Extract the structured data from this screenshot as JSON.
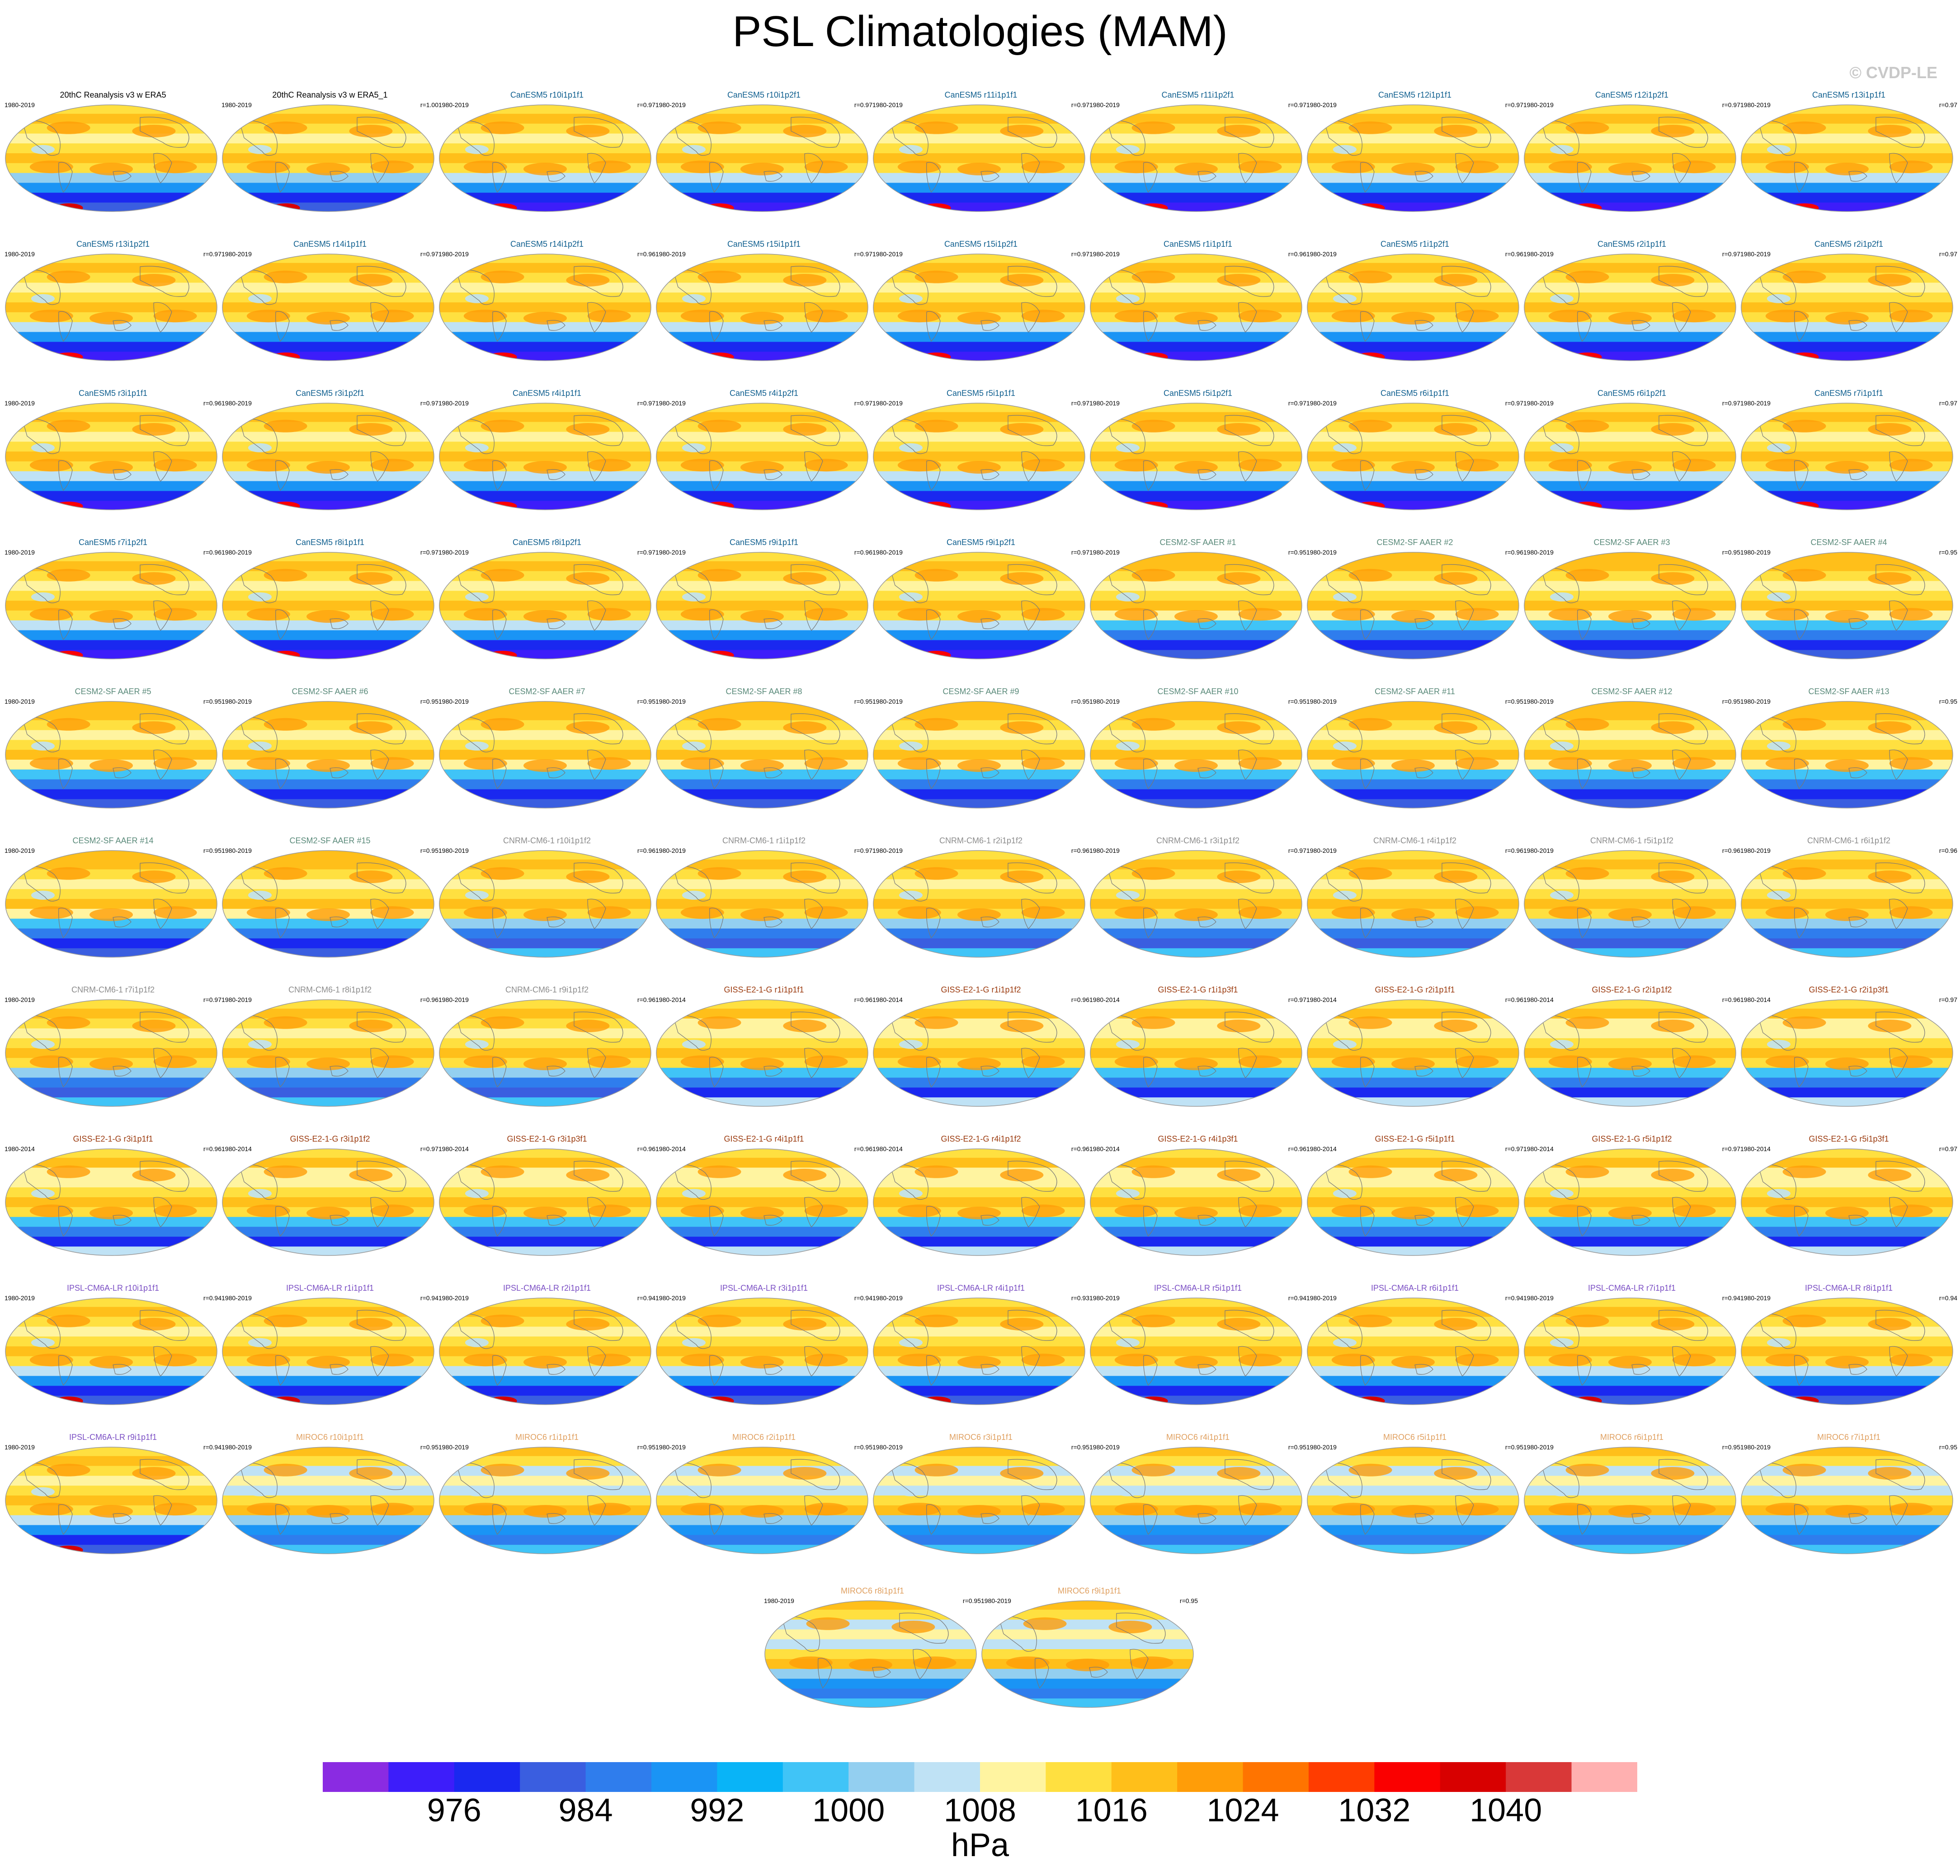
{
  "figure_title": "PSL Climatologies (MAM)",
  "credit": "© CVDP-LE",
  "colors": {
    "observations": "#000000",
    "CanESM5": "#0f5f8f",
    "CESM2-SF AAER": "#5a8a7a",
    "CNRM-CM6-1": "#8c8c8c",
    "GISS-E2-1-G": "#9b3a0e",
    "IPSL-CM6A-LR": "#7b4fc4",
    "MIROC6": "#e0a060"
  },
  "panels": [
    {
      "title": "20thC Reanalysis v3 w ERA5",
      "years": "1980-2019",
      "r": "",
      "group": "observations",
      "style": "obs"
    },
    {
      "title": "20thC Reanalysis v3 w ERA5_1",
      "years": "1980-2019",
      "r": "r=1.00",
      "group": "observations",
      "style": "obs"
    },
    {
      "title": "CanESM5 r10i1p1f1",
      "years": "1980-2019",
      "r": "r=0.97",
      "group": "CanESM5",
      "style": "canesm"
    },
    {
      "title": "CanESM5 r10i1p2f1",
      "years": "1980-2019",
      "r": "r=0.97",
      "group": "CanESM5",
      "style": "canesm"
    },
    {
      "title": "CanESM5 r11i1p1f1",
      "years": "1980-2019",
      "r": "r=0.97",
      "group": "CanESM5",
      "style": "canesm"
    },
    {
      "title": "CanESM5 r11i1p2f1",
      "years": "1980-2019",
      "r": "r=0.97",
      "group": "CanESM5",
      "style": "canesm"
    },
    {
      "title": "CanESM5 r12i1p1f1",
      "years": "1980-2019",
      "r": "r=0.97",
      "group": "CanESM5",
      "style": "canesm"
    },
    {
      "title": "CanESM5 r12i1p2f1",
      "years": "1980-2019",
      "r": "r=0.97",
      "group": "CanESM5",
      "style": "canesm"
    },
    {
      "title": "CanESM5 r13i1p1f1",
      "years": "1980-2019",
      "r": "r=0.97",
      "group": "CanESM5",
      "style": "canesm"
    },
    {
      "title": "CanESM5 r13i1p2f1",
      "years": "1980-2019",
      "r": "r=0.97",
      "group": "CanESM5",
      "style": "canesm"
    },
    {
      "title": "CanESM5 r14i1p1f1",
      "years": "1980-2019",
      "r": "r=0.97",
      "group": "CanESM5",
      "style": "canesm"
    },
    {
      "title": "CanESM5 r14i1p2f1",
      "years": "1980-2019",
      "r": "r=0.96",
      "group": "CanESM5",
      "style": "canesm"
    },
    {
      "title": "CanESM5 r15i1p1f1",
      "years": "1980-2019",
      "r": "r=0.97",
      "group": "CanESM5",
      "style": "canesm"
    },
    {
      "title": "CanESM5 r15i1p2f1",
      "years": "1980-2019",
      "r": "r=0.97",
      "group": "CanESM5",
      "style": "canesm"
    },
    {
      "title": "CanESM5 r1i1p1f1",
      "years": "1980-2019",
      "r": "r=0.96",
      "group": "CanESM5",
      "style": "canesm"
    },
    {
      "title": "CanESM5 r1i1p2f1",
      "years": "1980-2019",
      "r": "r=0.96",
      "group": "CanESM5",
      "style": "canesm"
    },
    {
      "title": "CanESM5 r2i1p1f1",
      "years": "1980-2019",
      "r": "r=0.97",
      "group": "CanESM5",
      "style": "canesm"
    },
    {
      "title": "CanESM5 r2i1p2f1",
      "years": "1980-2019",
      "r": "r=0.97",
      "group": "CanESM5",
      "style": "canesm"
    },
    {
      "title": "CanESM5 r3i1p1f1",
      "years": "1980-2019",
      "r": "r=0.96",
      "group": "CanESM5",
      "style": "canesm"
    },
    {
      "title": "CanESM5 r3i1p2f1",
      "years": "1980-2019",
      "r": "r=0.97",
      "group": "CanESM5",
      "style": "canesm"
    },
    {
      "title": "CanESM5 r4i1p1f1",
      "years": "1980-2019",
      "r": "r=0.97",
      "group": "CanESM5",
      "style": "canesm"
    },
    {
      "title": "CanESM5 r4i1p2f1",
      "years": "1980-2019",
      "r": "r=0.97",
      "group": "CanESM5",
      "style": "canesm"
    },
    {
      "title": "CanESM5 r5i1p1f1",
      "years": "1980-2019",
      "r": "r=0.97",
      "group": "CanESM5",
      "style": "canesm"
    },
    {
      "title": "CanESM5 r5i1p2f1",
      "years": "1980-2019",
      "r": "r=0.97",
      "group": "CanESM5",
      "style": "canesm"
    },
    {
      "title": "CanESM5 r6i1p1f1",
      "years": "1980-2019",
      "r": "r=0.97",
      "group": "CanESM5",
      "style": "canesm"
    },
    {
      "title": "CanESM5 r6i1p2f1",
      "years": "1980-2019",
      "r": "r=0.97",
      "group": "CanESM5",
      "style": "canesm"
    },
    {
      "title": "CanESM5 r7i1p1f1",
      "years": "1980-2019",
      "r": "r=0.97",
      "group": "CanESM5",
      "style": "canesm"
    },
    {
      "title": "CanESM5 r7i1p2f1",
      "years": "1980-2019",
      "r": "r=0.96",
      "group": "CanESM5",
      "style": "canesm"
    },
    {
      "title": "CanESM5 r8i1p1f1",
      "years": "1980-2019",
      "r": "r=0.97",
      "group": "CanESM5",
      "style": "canesm"
    },
    {
      "title": "CanESM5 r8i1p2f1",
      "years": "1980-2019",
      "r": "r=0.97",
      "group": "CanESM5",
      "style": "canesm"
    },
    {
      "title": "CanESM5 r9i1p1f1",
      "years": "1980-2019",
      "r": "r=0.96",
      "group": "CanESM5",
      "style": "canesm"
    },
    {
      "title": "CanESM5 r9i1p2f1",
      "years": "1980-2019",
      "r": "r=0.97",
      "group": "CanESM5",
      "style": "canesm"
    },
    {
      "title": "CESM2-SF AAER #1",
      "years": "1980-2019",
      "r": "r=0.95",
      "group": "CESM2-SF AAER",
      "style": "cesm"
    },
    {
      "title": "CESM2-SF AAER #2",
      "years": "1980-2019",
      "r": "r=0.96",
      "group": "CESM2-SF AAER",
      "style": "cesm"
    },
    {
      "title": "CESM2-SF AAER #3",
      "years": "1980-2019",
      "r": "r=0.95",
      "group": "CESM2-SF AAER",
      "style": "cesm"
    },
    {
      "title": "CESM2-SF AAER #4",
      "years": "1980-2019",
      "r": "r=0.95",
      "group": "CESM2-SF AAER",
      "style": "cesm"
    },
    {
      "title": "CESM2-SF AAER #5",
      "years": "1980-2019",
      "r": "r=0.95",
      "group": "CESM2-SF AAER",
      "style": "cesm"
    },
    {
      "title": "CESM2-SF AAER #6",
      "years": "1980-2019",
      "r": "r=0.95",
      "group": "CESM2-SF AAER",
      "style": "cesm"
    },
    {
      "title": "CESM2-SF AAER #7",
      "years": "1980-2019",
      "r": "r=0.95",
      "group": "CESM2-SF AAER",
      "style": "cesm"
    },
    {
      "title": "CESM2-SF AAER #8",
      "years": "1980-2019",
      "r": "r=0.95",
      "group": "CESM2-SF AAER",
      "style": "cesm"
    },
    {
      "title": "CESM2-SF AAER #9",
      "years": "1980-2019",
      "r": "r=0.95",
      "group": "CESM2-SF AAER",
      "style": "cesm"
    },
    {
      "title": "CESM2-SF AAER #10",
      "years": "1980-2019",
      "r": "r=0.95",
      "group": "CESM2-SF AAER",
      "style": "cesm"
    },
    {
      "title": "CESM2-SF AAER #11",
      "years": "1980-2019",
      "r": "r=0.95",
      "group": "CESM2-SF AAER",
      "style": "cesm"
    },
    {
      "title": "CESM2-SF AAER #12",
      "years": "1980-2019",
      "r": "r=0.95",
      "group": "CESM2-SF AAER",
      "style": "cesm"
    },
    {
      "title": "CESM2-SF AAER #13",
      "years": "1980-2019",
      "r": "r=0.95",
      "group": "CESM2-SF AAER",
      "style": "cesm"
    },
    {
      "title": "CESM2-SF AAER #14",
      "years": "1980-2019",
      "r": "r=0.95",
      "group": "CESM2-SF AAER",
      "style": "cesm"
    },
    {
      "title": "CESM2-SF AAER #15",
      "years": "1980-2019",
      "r": "r=0.95",
      "group": "CESM2-SF AAER",
      "style": "cesm"
    },
    {
      "title": "CNRM-CM6-1 r10i1p1f2",
      "years": "1980-2019",
      "r": "r=0.96",
      "group": "CNRM-CM6-1",
      "style": "cnrm"
    },
    {
      "title": "CNRM-CM6-1 r1i1p1f2",
      "years": "1980-2019",
      "r": "r=0.97",
      "group": "CNRM-CM6-1",
      "style": "cnrm"
    },
    {
      "title": "CNRM-CM6-1 r2i1p1f2",
      "years": "1980-2019",
      "r": "r=0.96",
      "group": "CNRM-CM6-1",
      "style": "cnrm"
    },
    {
      "title": "CNRM-CM6-1 r3i1p1f2",
      "years": "1980-2019",
      "r": "r=0.97",
      "group": "CNRM-CM6-1",
      "style": "cnrm"
    },
    {
      "title": "CNRM-CM6-1 r4i1p1f2",
      "years": "1980-2019",
      "r": "r=0.96",
      "group": "CNRM-CM6-1",
      "style": "cnrm"
    },
    {
      "title": "CNRM-CM6-1 r5i1p1f2",
      "years": "1980-2019",
      "r": "r=0.96",
      "group": "CNRM-CM6-1",
      "style": "cnrm"
    },
    {
      "title": "CNRM-CM6-1 r6i1p1f2",
      "years": "1980-2019",
      "r": "r=0.96",
      "group": "CNRM-CM6-1",
      "style": "cnrm"
    },
    {
      "title": "CNRM-CM6-1 r7i1p1f2",
      "years": "1980-2019",
      "r": "r=0.97",
      "group": "CNRM-CM6-1",
      "style": "cnrm"
    },
    {
      "title": "CNRM-CM6-1 r8i1p1f2",
      "years": "1980-2019",
      "r": "r=0.96",
      "group": "CNRM-CM6-1",
      "style": "cnrm"
    },
    {
      "title": "CNRM-CM6-1 r9i1p1f2",
      "years": "1980-2019",
      "r": "r=0.96",
      "group": "CNRM-CM6-1",
      "style": "cnrm"
    },
    {
      "title": "GISS-E2-1-G r1i1p1f1",
      "years": "1980-2014",
      "r": "r=0.96",
      "group": "GISS-E2-1-G",
      "style": "giss"
    },
    {
      "title": "GISS-E2-1-G r1i1p1f2",
      "years": "1980-2014",
      "r": "r=0.96",
      "group": "GISS-E2-1-G",
      "style": "giss"
    },
    {
      "title": "GISS-E2-1-G r1i1p3f1",
      "years": "1980-2014",
      "r": "r=0.97",
      "group": "GISS-E2-1-G",
      "style": "giss"
    },
    {
      "title": "GISS-E2-1-G r2i1p1f1",
      "years": "1980-2014",
      "r": "r=0.96",
      "group": "GISS-E2-1-G",
      "style": "giss"
    },
    {
      "title": "GISS-E2-1-G r2i1p1f2",
      "years": "1980-2014",
      "r": "r=0.96",
      "group": "GISS-E2-1-G",
      "style": "giss"
    },
    {
      "title": "GISS-E2-1-G r2i1p3f1",
      "years": "1980-2014",
      "r": "r=0.97",
      "group": "GISS-E2-1-G",
      "style": "giss"
    },
    {
      "title": "GISS-E2-1-G r3i1p1f1",
      "years": "1980-2014",
      "r": "r=0.96",
      "group": "GISS-E2-1-G",
      "style": "giss"
    },
    {
      "title": "GISS-E2-1-G r3i1p1f2",
      "years": "1980-2014",
      "r": "r=0.97",
      "group": "GISS-E2-1-G",
      "style": "giss"
    },
    {
      "title": "GISS-E2-1-G r3i1p3f1",
      "years": "1980-2014",
      "r": "r=0.96",
      "group": "GISS-E2-1-G",
      "style": "giss"
    },
    {
      "title": "GISS-E2-1-G r4i1p1f1",
      "years": "1980-2014",
      "r": "r=0.96",
      "group": "GISS-E2-1-G",
      "style": "giss"
    },
    {
      "title": "GISS-E2-1-G r4i1p1f2",
      "years": "1980-2014",
      "r": "r=0.96",
      "group": "GISS-E2-1-G",
      "style": "giss"
    },
    {
      "title": "GISS-E2-1-G r4i1p3f1",
      "years": "1980-2014",
      "r": "r=0.96",
      "group": "GISS-E2-1-G",
      "style": "giss"
    },
    {
      "title": "GISS-E2-1-G r5i1p1f1",
      "years": "1980-2014",
      "r": "r=0.97",
      "group": "GISS-E2-1-G",
      "style": "giss"
    },
    {
      "title": "GISS-E2-1-G r5i1p1f2",
      "years": "1980-2014",
      "r": "r=0.97",
      "group": "GISS-E2-1-G",
      "style": "giss"
    },
    {
      "title": "GISS-E2-1-G r5i1p3f1",
      "years": "1980-2014",
      "r": "r=0.97",
      "group": "GISS-E2-1-G",
      "style": "giss"
    },
    {
      "title": "IPSL-CM6A-LR r10i1p1f1",
      "years": "1980-2019",
      "r": "r=0.94",
      "group": "IPSL-CM6A-LR",
      "style": "ipsl"
    },
    {
      "title": "IPSL-CM6A-LR r1i1p1f1",
      "years": "1980-2019",
      "r": "r=0.94",
      "group": "IPSL-CM6A-LR",
      "style": "ipsl"
    },
    {
      "title": "IPSL-CM6A-LR r2i1p1f1",
      "years": "1980-2019",
      "r": "r=0.94",
      "group": "IPSL-CM6A-LR",
      "style": "ipsl"
    },
    {
      "title": "IPSL-CM6A-LR r3i1p1f1",
      "years": "1980-2019",
      "r": "r=0.94",
      "group": "IPSL-CM6A-LR",
      "style": "ipsl"
    },
    {
      "title": "IPSL-CM6A-LR r4i1p1f1",
      "years": "1980-2019",
      "r": "r=0.93",
      "group": "IPSL-CM6A-LR",
      "style": "ipsl"
    },
    {
      "title": "IPSL-CM6A-LR r5i1p1f1",
      "years": "1980-2019",
      "r": "r=0.94",
      "group": "IPSL-CM6A-LR",
      "style": "ipsl"
    },
    {
      "title": "IPSL-CM6A-LR r6i1p1f1",
      "years": "1980-2019",
      "r": "r=0.94",
      "group": "IPSL-CM6A-LR",
      "style": "ipsl"
    },
    {
      "title": "IPSL-CM6A-LR r7i1p1f1",
      "years": "1980-2019",
      "r": "r=0.94",
      "group": "IPSL-CM6A-LR",
      "style": "ipsl"
    },
    {
      "title": "IPSL-CM6A-LR r8i1p1f1",
      "years": "1980-2019",
      "r": "r=0.94",
      "group": "IPSL-CM6A-LR",
      "style": "ipsl"
    },
    {
      "title": "IPSL-CM6A-LR r9i1p1f1",
      "years": "1980-2019",
      "r": "r=0.94",
      "group": "IPSL-CM6A-LR",
      "style": "ipsl"
    },
    {
      "title": "MIROC6 r10i1p1f1",
      "years": "1980-2019",
      "r": "r=0.95",
      "group": "MIROC6",
      "style": "miroc"
    },
    {
      "title": "MIROC6 r1i1p1f1",
      "years": "1980-2019",
      "r": "r=0.95",
      "group": "MIROC6",
      "style": "miroc"
    },
    {
      "title": "MIROC6 r2i1p1f1",
      "years": "1980-2019",
      "r": "r=0.95",
      "group": "MIROC6",
      "style": "miroc"
    },
    {
      "title": "MIROC6 r3i1p1f1",
      "years": "1980-2019",
      "r": "r=0.95",
      "group": "MIROC6",
      "style": "miroc"
    },
    {
      "title": "MIROC6 r4i1p1f1",
      "years": "1980-2019",
      "r": "r=0.95",
      "group": "MIROC6",
      "style": "miroc"
    },
    {
      "title": "MIROC6 r5i1p1f1",
      "years": "1980-2019",
      "r": "r=0.95",
      "group": "MIROC6",
      "style": "miroc"
    },
    {
      "title": "MIROC6 r6i1p1f1",
      "years": "1980-2019",
      "r": "r=0.95",
      "group": "MIROC6",
      "style": "miroc"
    },
    {
      "title": "MIROC6 r7i1p1f1",
      "years": "1980-2019",
      "r": "r=0.95",
      "group": "MIROC6",
      "style": "miroc"
    },
    {
      "title": "MIROC6 r8i1p1f1",
      "years": "1980-2019",
      "r": "r=0.95",
      "group": "MIROC6",
      "style": "miroc"
    },
    {
      "title": "MIROC6 r9i1p1f1",
      "years": "1980-2019",
      "r": "r=0.95",
      "group": "MIROC6",
      "style": "miroc"
    }
  ],
  "chart_data": {
    "type": "heatmap",
    "title": "PSL Climatologies (MAM)",
    "colorbar": {
      "units": "hPa",
      "tick_labels": [
        "976",
        "984",
        "992",
        "1000",
        "1008",
        "1016",
        "1024",
        "1032",
        "1040"
      ],
      "colors": [
        "#8a2be2",
        "#3d1dfa",
        "#1a28f0",
        "#3a5ee0",
        "#2f7ded",
        "#1a94f5",
        "#09b4f7",
        "#40c4f7",
        "#93cff0",
        "#bfe2f5",
        "#fff4a0",
        "#ffe040",
        "#ffbf1a",
        "#ff9d08",
        "#ff7400",
        "#ff3c00",
        "#fa0000",
        "#d80000",
        "#d93838",
        "#ffb0b0"
      ]
    }
  }
}
